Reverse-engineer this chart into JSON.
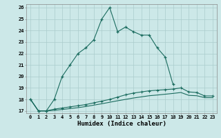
{
  "xlabel": "Humidex (Indice chaleur)",
  "background_color": "#cce8e8",
  "grid_color": "#aacccc",
  "line_color": "#1a6b5e",
  "x_values": [
    0,
    1,
    2,
    3,
    4,
    5,
    6,
    7,
    8,
    9,
    10,
    11,
    12,
    13,
    14,
    15,
    16,
    17,
    18,
    19,
    20,
    21,
    22,
    23
  ],
  "line1": [
    18,
    17,
    17,
    18,
    20,
    21,
    22,
    22.5,
    23.2,
    25,
    26,
    23.9,
    24.3,
    23.9,
    23.6,
    23.6,
    22.5,
    21.7,
    19.3,
    null,
    null,
    null,
    null,
    null
  ],
  "line2": [
    18,
    17,
    17,
    17.15,
    17.25,
    17.35,
    17.45,
    17.55,
    17.7,
    17.85,
    18.0,
    18.2,
    18.4,
    18.55,
    18.65,
    18.75,
    18.8,
    18.85,
    18.9,
    19.0,
    18.65,
    18.6,
    18.3,
    18.3
  ],
  "line3": [
    18,
    17,
    17,
    17.05,
    17.12,
    17.2,
    17.28,
    17.38,
    17.5,
    17.62,
    17.75,
    17.88,
    18.0,
    18.12,
    18.22,
    18.32,
    18.38,
    18.45,
    18.52,
    18.6,
    18.35,
    18.32,
    18.15,
    18.15
  ],
  "ylim": [
    16.8,
    26.3
  ],
  "yticks": [
    17,
    18,
    19,
    20,
    21,
    22,
    23,
    24,
    25,
    26
  ],
  "xticks": [
    0,
    1,
    2,
    3,
    4,
    5,
    6,
    7,
    8,
    9,
    10,
    11,
    12,
    13,
    14,
    15,
    16,
    17,
    18,
    19,
    20,
    21,
    22,
    23
  ]
}
